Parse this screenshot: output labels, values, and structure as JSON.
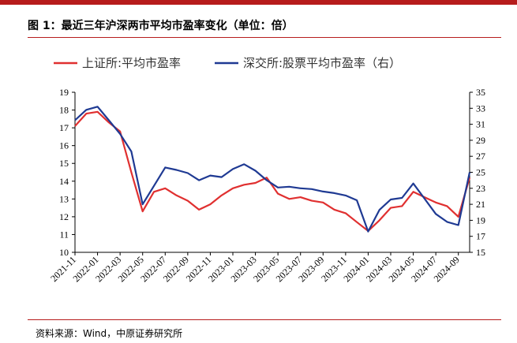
{
  "title": "图 1：最近三年沪深两市平均市盈率变化（单位：倍）",
  "source": "资料来源：Wind，中原证券研究所",
  "colors": {
    "accent": "#b71c1c",
    "series1": "#e03030",
    "series2": "#1f3a93"
  },
  "chart_data": {
    "type": "line",
    "title": "",
    "xlabel": "",
    "ylabel": "",
    "legend_position": "top",
    "grid": false,
    "x_ticks": [
      "2021-11",
      "2022-01",
      "2022-03",
      "2022-05",
      "2022-07",
      "2022-09",
      "2022-11",
      "2023-01",
      "2023-03",
      "2023-05",
      "2023-07",
      "2023-09",
      "2023-11",
      "2024-01",
      "2024-03",
      "2024-05",
      "2024-07",
      "2024-09"
    ],
    "x_range": [
      "2021-11",
      "2024-10"
    ],
    "y_left": {
      "min": 10,
      "max": 19,
      "ticks": [
        10,
        11,
        12,
        13,
        14,
        15,
        16,
        17,
        18,
        19
      ]
    },
    "y_right": {
      "min": 15,
      "max": 35,
      "ticks": [
        15,
        17,
        19,
        21,
        23,
        25,
        27,
        29,
        31,
        33,
        35
      ]
    },
    "series": [
      {
        "name": "上证所:平均市盈率",
        "axis": "left",
        "x": [
          "2021-11",
          "2021-12",
          "2022-01",
          "2022-02",
          "2022-03",
          "2022-04",
          "2022-05",
          "2022-06",
          "2022-07",
          "2022-08",
          "2022-09",
          "2022-10",
          "2022-11",
          "2022-12",
          "2023-01",
          "2023-02",
          "2023-03",
          "2023-04",
          "2023-05",
          "2023-06",
          "2023-07",
          "2023-08",
          "2023-09",
          "2023-10",
          "2023-11",
          "2023-12",
          "2024-01",
          "2024-02",
          "2024-03",
          "2024-04",
          "2024-05",
          "2024-06",
          "2024-07",
          "2024-08",
          "2024-09",
          "2024-10"
        ],
        "values": [
          17.1,
          17.8,
          17.9,
          17.3,
          16.8,
          14.5,
          12.3,
          13.4,
          13.6,
          13.2,
          12.9,
          12.4,
          12.7,
          13.2,
          13.6,
          13.8,
          13.9,
          14.2,
          13.3,
          13.0,
          13.1,
          12.9,
          12.8,
          12.4,
          12.2,
          11.7,
          11.2,
          11.8,
          12.5,
          12.6,
          13.4,
          13.1,
          12.8,
          12.6,
          12.0,
          14.2
        ]
      },
      {
        "name": "深交所:股票平均市盈率（右）",
        "axis": "right",
        "x": [
          "2021-11",
          "2021-12",
          "2022-01",
          "2022-02",
          "2022-03",
          "2022-04",
          "2022-05",
          "2022-06",
          "2022-07",
          "2022-08",
          "2022-09",
          "2022-10",
          "2022-11",
          "2022-12",
          "2023-01",
          "2023-02",
          "2023-03",
          "2023-04",
          "2023-05",
          "2023-06",
          "2023-07",
          "2023-08",
          "2023-09",
          "2023-10",
          "2023-11",
          "2023-12",
          "2024-01",
          "2024-02",
          "2024-03",
          "2024-04",
          "2024-05",
          "2024-06",
          "2024-07",
          "2024-08",
          "2024-09",
          "2024-10"
        ],
        "values": [
          31.5,
          32.8,
          33.2,
          31.5,
          29.8,
          27.6,
          21.0,
          23.3,
          25.6,
          25.3,
          24.9,
          24.0,
          24.6,
          24.4,
          25.4,
          26.0,
          25.2,
          24.0,
          23.1,
          23.2,
          23.0,
          22.9,
          22.6,
          22.4,
          22.1,
          21.5,
          17.6,
          20.3,
          21.6,
          21.8,
          23.6,
          21.7,
          19.8,
          18.8,
          18.4,
          25.0
        ]
      }
    ]
  }
}
